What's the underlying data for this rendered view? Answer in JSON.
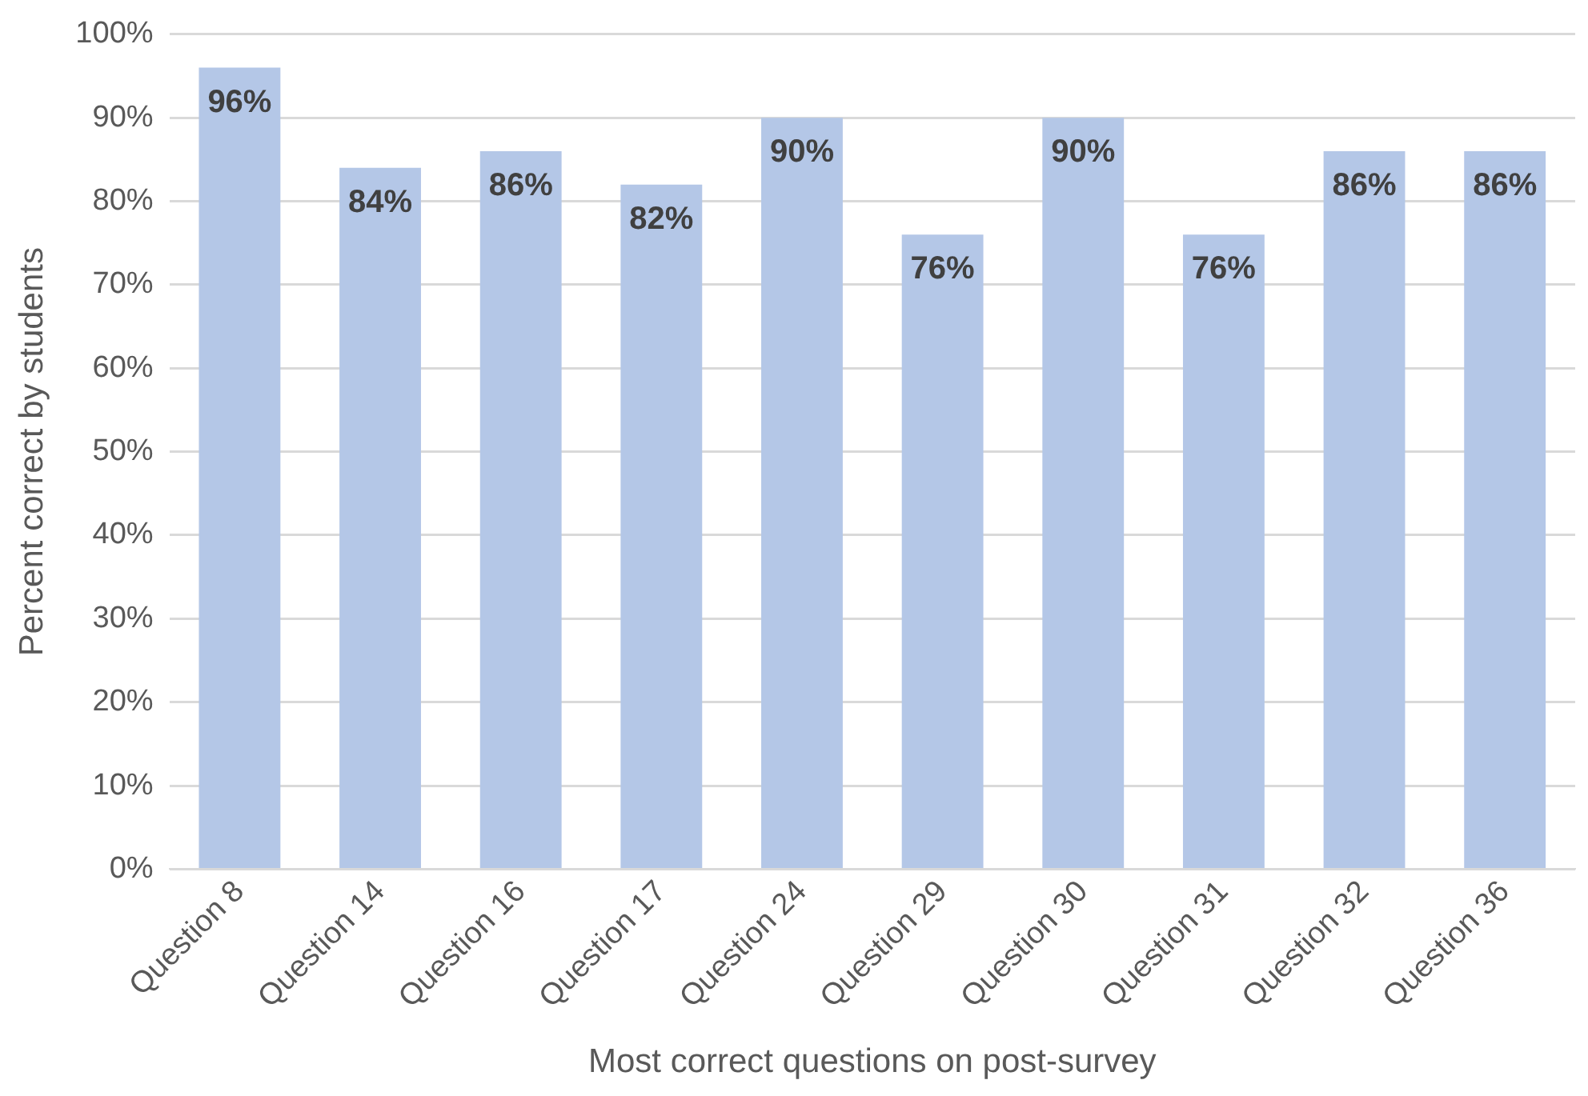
{
  "chart_data": {
    "type": "bar",
    "xlabel": "Most correct questions on post-survey",
    "ylabel": "Percent correct by students",
    "categories": [
      "Question 8",
      "Question 14",
      "Question 16",
      "Question 17",
      "Question 24",
      "Question 29",
      "Question 30",
      "Question 31",
      "Question 32",
      "Question 36"
    ],
    "values": [
      96,
      84,
      86,
      82,
      90,
      76,
      90,
      76,
      86,
      86
    ],
    "value_labels": [
      "96%",
      "84%",
      "86%",
      "82%",
      "90%",
      "76%",
      "90%",
      "76%",
      "86%",
      "86%"
    ],
    "color": "#b4c7e7",
    "ylim": [
      0,
      100
    ],
    "yticks": [
      {
        "value": 0,
        "label": "0%"
      },
      {
        "value": 10,
        "label": "10%"
      },
      {
        "value": 20,
        "label": "20%"
      },
      {
        "value": 30,
        "label": "30%"
      },
      {
        "value": 40,
        "label": "40%"
      },
      {
        "value": 50,
        "label": "50%"
      },
      {
        "value": 60,
        "label": "60%"
      },
      {
        "value": 70,
        "label": "70%"
      },
      {
        "value": 80,
        "label": "80%"
      },
      {
        "value": 90,
        "label": "90%"
      },
      {
        "value": 100,
        "label": "100%"
      }
    ],
    "grid": "y",
    "legend": false
  }
}
